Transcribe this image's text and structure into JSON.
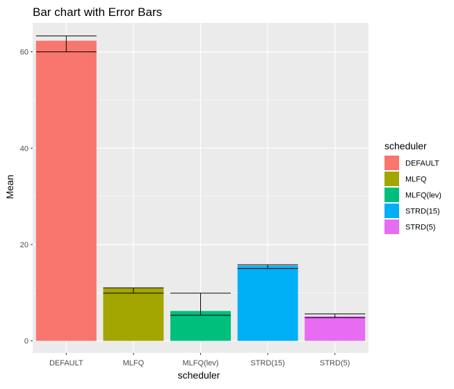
{
  "chart_data": {
    "type": "bar",
    "title": "Bar chart with Error Bars",
    "xlabel": "scheduler",
    "ylabel": "Mean",
    "categories": [
      "DEFAULT",
      "MLFQ",
      "MLFQ(lev)",
      "STRD(15)",
      "STRD(5)"
    ],
    "values": [
      62.3,
      10.9,
      6.2,
      15.6,
      5.1
    ],
    "error_low": [
      60.0,
      9.9,
      5.3,
      15.0,
      4.8
    ],
    "error_high": [
      63.3,
      11.0,
      9.9,
      15.8,
      5.6
    ],
    "colors": [
      "#F8766D",
      "#A3A500",
      "#00BF7D",
      "#00B0F6",
      "#E76BF3"
    ],
    "ylim": [
      -2.5,
      66
    ],
    "yticks": [
      0,
      20,
      40,
      60
    ],
    "grid": true,
    "legend": {
      "title": "scheduler",
      "placement": "right",
      "entries": [
        "DEFAULT",
        "MLFQ",
        "MLFQ(lev)",
        "STRD(15)",
        "STRD(5)"
      ]
    },
    "panel_background": "#EBEBEB",
    "grid_color": "#FFFFFF"
  }
}
